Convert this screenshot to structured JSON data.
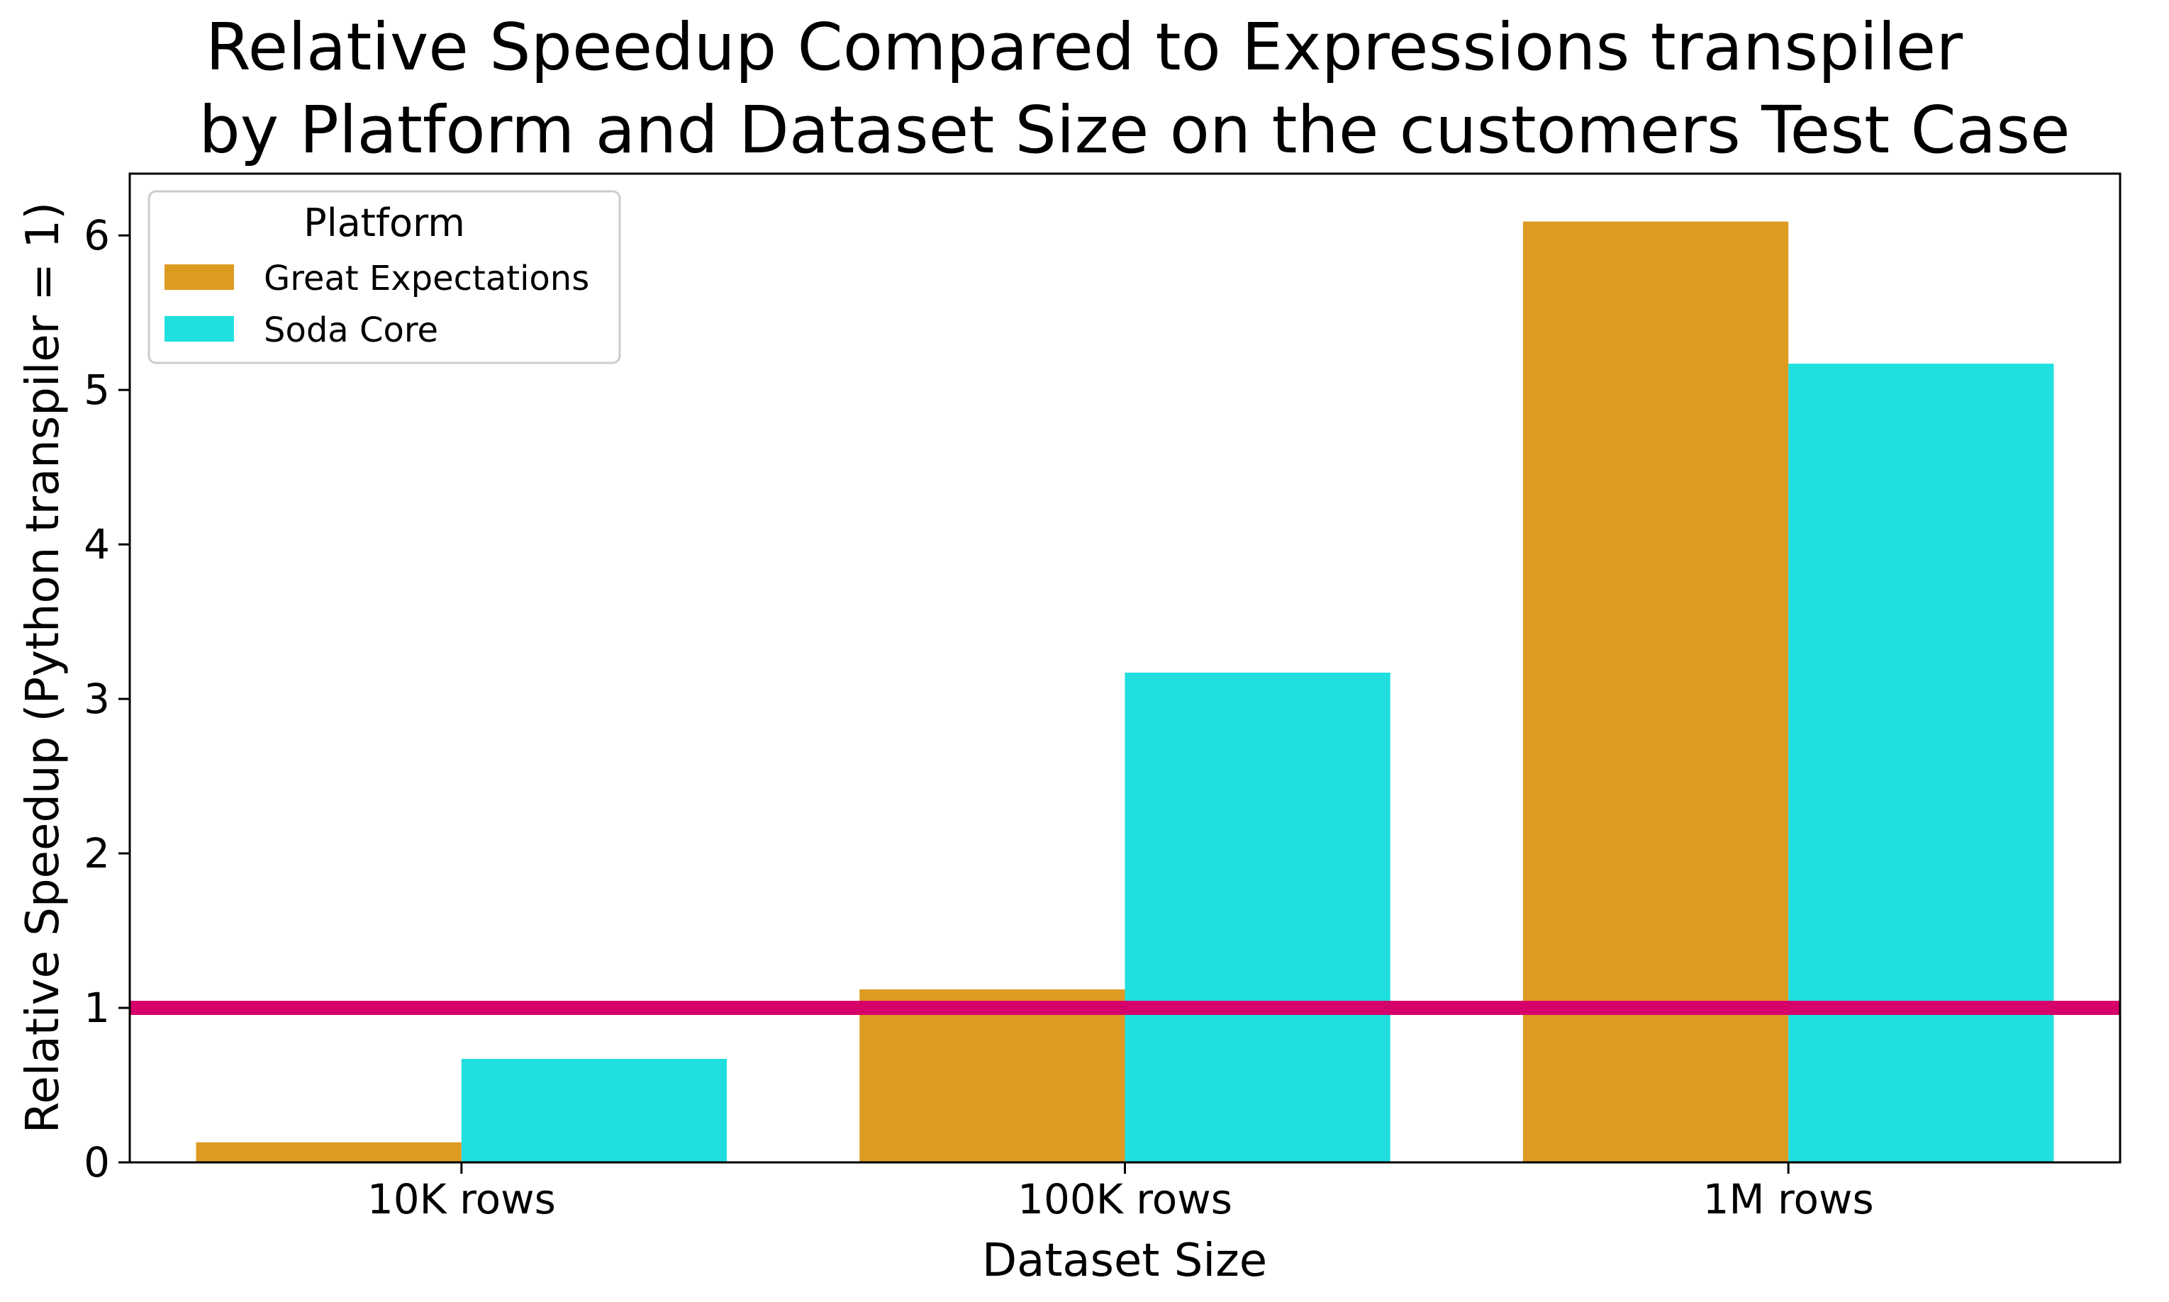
{
  "chart_data": {
    "type": "bar",
    "title_lines": [
      "Relative Speedup Compared to Expressions transpiler",
      "by Platform and Dataset Size on the customers Test Case"
    ],
    "xlabel": "Dataset Size",
    "ylabel": "Relative Speedup (Python transpiler = 1)",
    "categories": [
      "10K rows",
      "100K rows",
      "1M rows"
    ],
    "series": [
      {
        "name": "Great Expectations",
        "color": "#DE9B22",
        "values": [
          0.13,
          1.12,
          6.09
        ]
      },
      {
        "name": "Soda Core",
        "color": "#21DFDF",
        "values": [
          0.67,
          3.17,
          5.17
        ]
      }
    ],
    "ylim": [
      0,
      6.4
    ],
    "yticks": [
      0,
      1,
      2,
      3,
      4,
      5,
      6
    ],
    "reference_line": {
      "y": 1,
      "color": "#D6006B"
    },
    "legend": {
      "title": "Platform",
      "position": "top-left"
    },
    "grid": false
  }
}
